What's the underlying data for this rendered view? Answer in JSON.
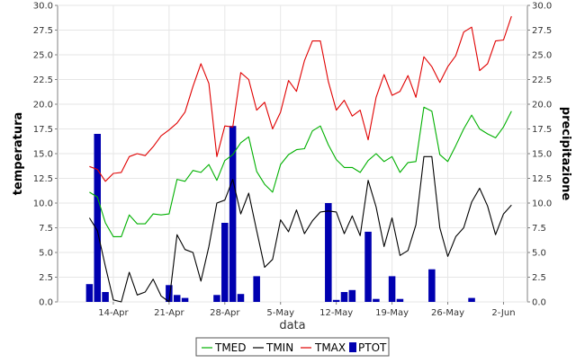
{
  "chart_data": {
    "type": "line",
    "xlabel": "data",
    "ylabel_left": "temperatura",
    "ylabel_right": "precipitazione",
    "ylim": [
      0,
      30
    ],
    "y_ticks": [
      0.0,
      2.5,
      5.0,
      7.5,
      10.0,
      12.5,
      15.0,
      17.5,
      20.0,
      22.5,
      25.0,
      27.5,
      30.0
    ],
    "y_tick_labels": [
      "0.0",
      "2.5",
      "5.0",
      "7.5",
      "10.0",
      "12.5",
      "15.0",
      "17.5",
      "20.0",
      "22.5",
      "25.0",
      "27.5",
      "30.0"
    ],
    "x_ticks": [
      {
        "day": 7,
        "label": "14-Apr"
      },
      {
        "day": 14,
        "label": "21-Apr"
      },
      {
        "day": 21,
        "label": "28-Apr"
      },
      {
        "day": 28,
        "label": "5-May"
      },
      {
        "day": 35,
        "label": "12-May"
      },
      {
        "day": 42,
        "label": "19-May"
      },
      {
        "day": 49,
        "label": "26-May"
      },
      {
        "day": 56,
        "label": "2-Jun"
      }
    ],
    "x_range": [
      0,
      59
    ],
    "grid": true,
    "legend_position": "bottom",
    "legend": [
      "TMED",
      "TMIN",
      "TMAX",
      "PTOT"
    ],
    "colors": {
      "TMED": "#00b000",
      "TMIN": "#000000",
      "TMAX": "#e00000",
      "PTOT": "#0000b0"
    },
    "series": [
      {
        "name": "TMED",
        "type": "line",
        "values": [
          [
            4,
            11.1
          ],
          [
            5,
            10.6
          ],
          [
            6,
            8.0
          ],
          [
            7,
            6.6
          ],
          [
            8,
            6.6
          ],
          [
            9,
            8.8
          ],
          [
            10,
            7.9
          ],
          [
            11,
            7.9
          ],
          [
            12,
            8.9
          ],
          [
            13,
            8.8
          ],
          [
            14,
            8.9
          ],
          [
            15,
            12.4
          ],
          [
            16,
            12.2
          ],
          [
            17,
            13.3
          ],
          [
            18,
            13.1
          ],
          [
            19,
            13.9
          ],
          [
            20,
            12.3
          ],
          [
            21,
            14.3
          ],
          [
            22,
            14.9
          ],
          [
            23,
            16.1
          ],
          [
            24,
            16.7
          ],
          [
            25,
            13.2
          ],
          [
            26,
            11.9
          ],
          [
            27,
            11.1
          ],
          [
            28,
            13.9
          ],
          [
            29,
            14.9
          ],
          [
            30,
            15.4
          ],
          [
            31,
            15.5
          ],
          [
            32,
            17.3
          ],
          [
            33,
            17.8
          ],
          [
            34,
            15.9
          ],
          [
            35,
            14.4
          ],
          [
            36,
            13.6
          ],
          [
            37,
            13.6
          ],
          [
            38,
            13.1
          ],
          [
            39,
            14.3
          ],
          [
            40,
            15.0
          ],
          [
            41,
            14.2
          ],
          [
            42,
            14.7
          ],
          [
            43,
            13.1
          ],
          [
            44,
            14.1
          ],
          [
            45,
            14.2
          ],
          [
            46,
            19.7
          ],
          [
            47,
            19.3
          ],
          [
            48,
            14.9
          ],
          [
            49,
            14.2
          ],
          [
            50,
            15.8
          ],
          [
            51,
            17.5
          ],
          [
            52,
            18.9
          ],
          [
            53,
            17.5
          ],
          [
            54,
            17.0
          ],
          [
            55,
            16.6
          ],
          [
            56,
            17.7
          ],
          [
            57,
            19.3
          ]
        ]
      },
      {
        "name": "TMIN",
        "type": "line",
        "values": [
          [
            4,
            8.5
          ],
          [
            5,
            7.2
          ],
          [
            6,
            3.6
          ],
          [
            7,
            0.2
          ],
          [
            8,
            0.0
          ],
          [
            9,
            3.0
          ],
          [
            10,
            0.7
          ],
          [
            11,
            1.0
          ],
          [
            12,
            2.3
          ],
          [
            13,
            0.6
          ],
          [
            14,
            0.0
          ],
          [
            15,
            6.8
          ],
          [
            16,
            5.3
          ],
          [
            17,
            5.0
          ],
          [
            18,
            2.1
          ],
          [
            19,
            5.6
          ],
          [
            20,
            10.0
          ],
          [
            21,
            10.3
          ],
          [
            22,
            12.4
          ],
          [
            23,
            8.9
          ],
          [
            24,
            11.0
          ],
          [
            25,
            7.2
          ],
          [
            26,
            3.5
          ],
          [
            27,
            4.3
          ],
          [
            28,
            8.3
          ],
          [
            29,
            7.1
          ],
          [
            30,
            9.3
          ],
          [
            31,
            6.9
          ],
          [
            32,
            8.2
          ],
          [
            33,
            9.1
          ],
          [
            34,
            9.2
          ],
          [
            35,
            9.1
          ],
          [
            36,
            6.9
          ],
          [
            37,
            8.7
          ],
          [
            38,
            6.7
          ],
          [
            39,
            12.3
          ],
          [
            40,
            9.6
          ],
          [
            41,
            5.6
          ],
          [
            42,
            8.5
          ],
          [
            43,
            4.7
          ],
          [
            44,
            5.2
          ],
          [
            45,
            7.8
          ],
          [
            46,
            14.7
          ],
          [
            47,
            14.7
          ],
          [
            48,
            7.5
          ],
          [
            49,
            4.6
          ],
          [
            50,
            6.6
          ],
          [
            51,
            7.5
          ],
          [
            52,
            10.1
          ],
          [
            53,
            11.5
          ],
          [
            54,
            9.7
          ],
          [
            55,
            6.8
          ],
          [
            56,
            8.9
          ],
          [
            57,
            9.8
          ]
        ]
      },
      {
        "name": "TMAX",
        "type": "line",
        "values": [
          [
            4,
            13.7
          ],
          [
            5,
            13.4
          ],
          [
            6,
            12.2
          ],
          [
            7,
            13.0
          ],
          [
            8,
            13.1
          ],
          [
            9,
            14.7
          ],
          [
            10,
            15.0
          ],
          [
            11,
            14.8
          ],
          [
            12,
            15.7
          ],
          [
            13,
            16.8
          ],
          [
            14,
            17.4
          ],
          [
            15,
            18.1
          ],
          [
            16,
            19.2
          ],
          [
            17,
            21.8
          ],
          [
            18,
            24.1
          ],
          [
            19,
            22.1
          ],
          [
            20,
            14.7
          ],
          [
            21,
            17.8
          ],
          [
            22,
            17.7
          ],
          [
            23,
            23.2
          ],
          [
            24,
            22.5
          ],
          [
            25,
            19.4
          ],
          [
            26,
            20.2
          ],
          [
            27,
            17.5
          ],
          [
            28,
            19.2
          ],
          [
            29,
            22.4
          ],
          [
            30,
            21.3
          ],
          [
            31,
            24.4
          ],
          [
            32,
            26.4
          ],
          [
            33,
            26.4
          ],
          [
            34,
            22.3
          ],
          [
            35,
            19.4
          ],
          [
            36,
            20.4
          ],
          [
            37,
            18.8
          ],
          [
            38,
            19.4
          ],
          [
            39,
            16.4
          ],
          [
            40,
            20.7
          ],
          [
            41,
            23.0
          ],
          [
            42,
            20.9
          ],
          [
            43,
            21.3
          ],
          [
            44,
            22.9
          ],
          [
            45,
            20.7
          ],
          [
            46,
            24.8
          ],
          [
            47,
            23.8
          ],
          [
            48,
            22.2
          ],
          [
            49,
            23.8
          ],
          [
            50,
            24.9
          ],
          [
            51,
            27.3
          ],
          [
            52,
            27.8
          ],
          [
            53,
            23.4
          ],
          [
            54,
            24.1
          ],
          [
            55,
            26.4
          ],
          [
            56,
            26.5
          ],
          [
            57,
            28.9
          ]
        ]
      },
      {
        "name": "PTOT",
        "type": "bar",
        "values": [
          [
            4,
            1.8
          ],
          [
            5,
            17.0
          ],
          [
            6,
            1.0
          ],
          [
            14,
            1.7
          ],
          [
            15,
            0.7
          ],
          [
            16,
            0.4
          ],
          [
            20,
            0.7
          ],
          [
            21,
            8.0
          ],
          [
            22,
            17.8
          ],
          [
            23,
            0.8
          ],
          [
            25,
            2.6
          ],
          [
            34,
            10.0
          ],
          [
            35,
            0.2
          ],
          [
            36,
            1.0
          ],
          [
            37,
            1.2
          ],
          [
            39,
            7.1
          ],
          [
            40,
            0.3
          ],
          [
            42,
            2.6
          ],
          [
            43,
            0.3
          ],
          [
            47,
            3.3
          ],
          [
            52,
            0.4
          ]
        ]
      }
    ]
  }
}
